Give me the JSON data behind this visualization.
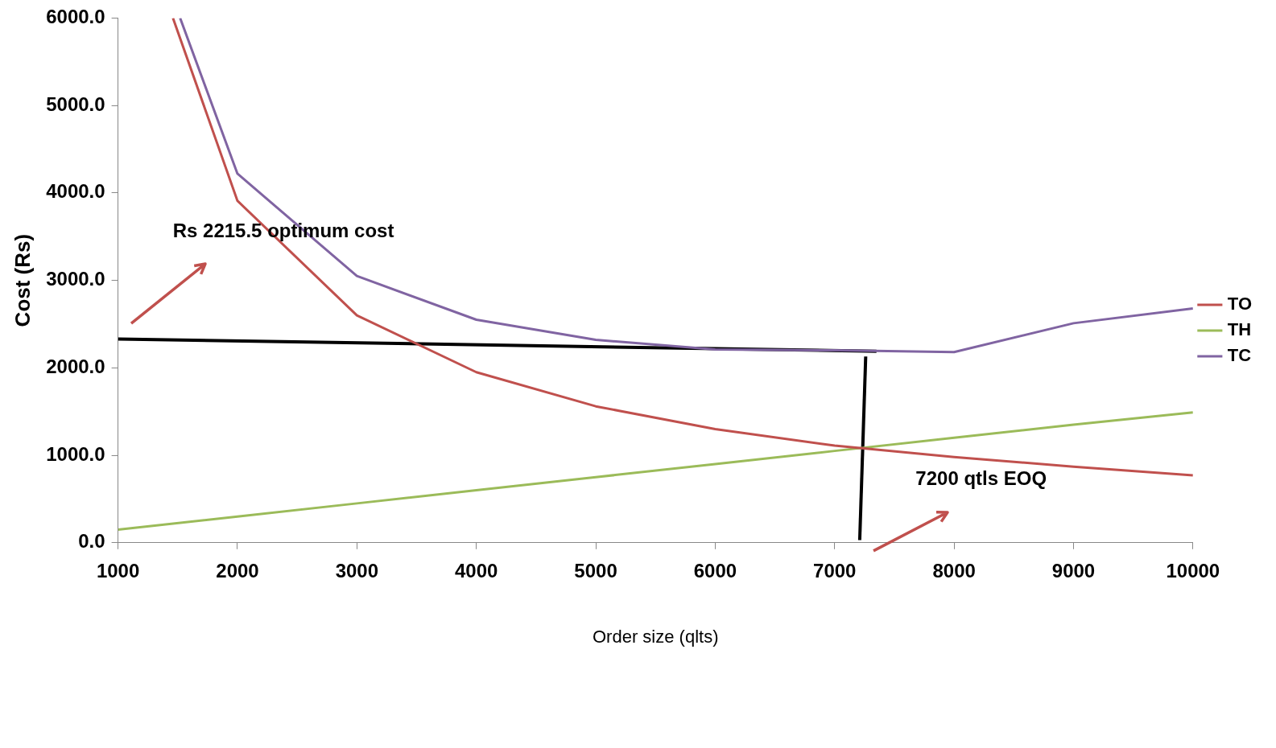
{
  "chart_data": {
    "type": "line",
    "xlabel": "Order size (qlts)",
    "ylabel": "Cost (Rs)",
    "xlim": [
      1000,
      10000
    ],
    "xticks": [
      1000,
      2000,
      3000,
      4000,
      5000,
      6000,
      7000,
      8000,
      9000,
      10000
    ],
    "ylim": [
      0,
      6000
    ],
    "yticks": [
      {
        "value": 0,
        "label": "0.0"
      },
      {
        "value": 1000,
        "label": "1000.0"
      },
      {
        "value": 2000,
        "label": "2000.0"
      },
      {
        "value": 3000,
        "label": "3000.0"
      },
      {
        "value": 4000,
        "label": "4000.0"
      },
      {
        "value": 5000,
        "label": "5000.0"
      },
      {
        "value": 6000,
        "label": "6000.0"
      }
    ],
    "grid": false,
    "legend": "right",
    "marker": "none",
    "line_style": "solid",
    "series": [
      {
        "name": "TO",
        "color": "#c0504d",
        "x": [
          1460,
          2000,
          3000,
          4000,
          5000,
          6000,
          7000,
          8000,
          9000,
          10000
        ],
        "values": [
          6000,
          3910,
          2600,
          1950,
          1560,
          1300,
          1110,
          980,
          870,
          770
        ]
      },
      {
        "name": "TH",
        "color": "#9bbb59",
        "x": [
          1000,
          2000,
          3000,
          4000,
          5000,
          6000,
          7000,
          8000,
          9000,
          10000
        ],
        "values": [
          150,
          300,
          450,
          600,
          750,
          900,
          1050,
          1200,
          1350,
          1490
        ]
      },
      {
        "name": "TC",
        "color": "#8064a2",
        "x": [
          1520,
          2000,
          3000,
          4000,
          5000,
          6000,
          7000,
          8000,
          9000,
          10000
        ],
        "values": [
          6000,
          4220,
          3050,
          2550,
          2320,
          2210,
          2200,
          2180,
          2510,
          2680
        ]
      },
      {
        "color": "#000000",
        "x": [
          1000,
          7350
        ],
        "values": [
          2330,
          2190
        ]
      },
      {
        "color": "#000000",
        "x": [
          7260,
          7210
        ],
        "values": [
          2130,
          30
        ]
      }
    ],
    "annotations": [
      "Rs 2215.5 optimum cost",
      "7200 qtls EOQ"
    ]
  }
}
